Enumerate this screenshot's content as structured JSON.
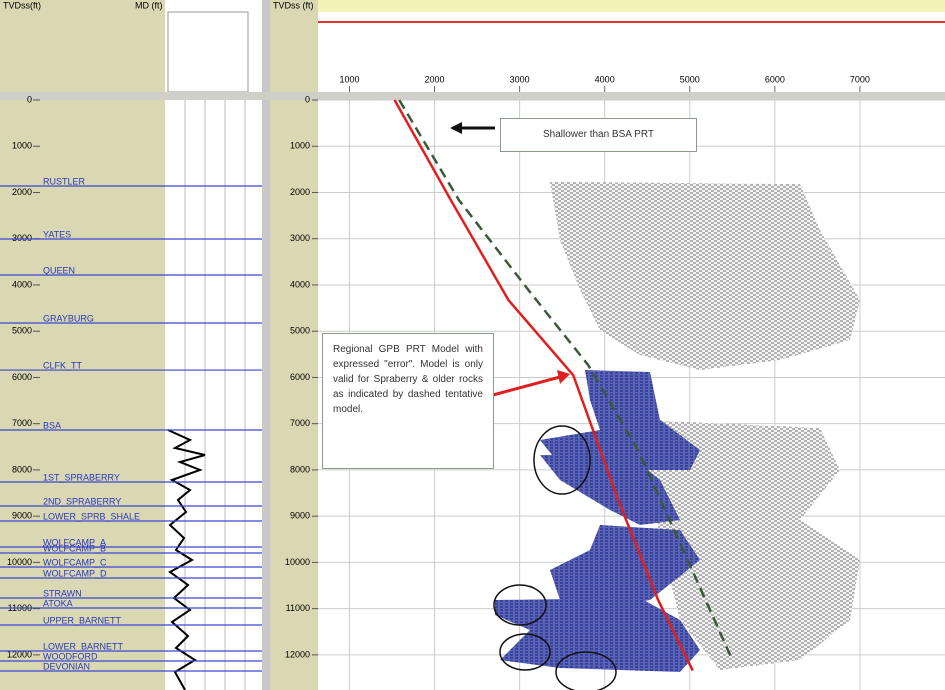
{
  "left_track": {
    "header": "TVDss(ft)",
    "md_header": "MD (ft)",
    "depth_ticks": [
      0,
      1000,
      2000,
      3000,
      4000,
      5000,
      6000,
      7000,
      8000,
      9000,
      10000,
      11000,
      12000
    ],
    "depth_lim": [
      0,
      12500
    ]
  },
  "depth_track": {
    "header": "TVDss (ft)"
  },
  "tops": [
    {
      "name": "RUSTLER",
      "depth": 1860
    },
    {
      "name": "YATES",
      "depth": 3006
    },
    {
      "name": "QUEEN",
      "depth": 3785
    },
    {
      "name": "GRAYBURG",
      "depth": 4823
    },
    {
      "name": "CLFK_TT",
      "depth": 5840
    },
    {
      "name": "BSA",
      "depth": 7137
    },
    {
      "name": "1ST_SPRABERRY",
      "depth": 8261
    },
    {
      "name": "2ND_SPRABERRY",
      "depth": 8780
    },
    {
      "name": "LOWER_SPRB_SHALE",
      "depth": 9105
    },
    {
      "name": "WOLFCAMP_A",
      "depth": 9667
    },
    {
      "name": "WOLFCAMP_B",
      "depth": 9797
    },
    {
      "name": "WOLFCAMP_C",
      "depth": 10100
    },
    {
      "name": "WOLFCAMP_D",
      "depth": 10337
    },
    {
      "name": "STRAWN",
      "depth": 10770
    },
    {
      "name": "ATOKA",
      "depth": 10986
    },
    {
      "name": "UPPER_BARNETT",
      "depth": 11354
    },
    {
      "name": "LOWER_BARNETT",
      "depth": 11916
    },
    {
      "name": "WOODFORD",
      "depth": 12132
    },
    {
      "name": "DEVONIAN",
      "depth": 12349
    }
  ],
  "crossplot": {
    "x_ticks": [
      1000,
      2000,
      3000,
      4000,
      5000,
      6000,
      7000
    ],
    "x_lim": [
      630,
      8000
    ],
    "gpb_model": {
      "color": "#e02020",
      "velocity": [
        1530,
        2190,
        2870,
        3630,
        4160,
        4630,
        5035
      ],
      "depth": [
        0,
        2160,
        4330,
        5950,
        8660,
        10820,
        12340
      ]
    },
    "tentative_model": {
      "color": "#3a5a3a",
      "velocity": [
        1585,
        2287,
        3105,
        3807,
        4392,
        4977,
        5503
      ],
      "depth": [
        0,
        2165,
        4113,
        5736,
        7576,
        9957,
        12121
      ]
    }
  },
  "callouts": {
    "shallow": "Shallower than BSA PRT",
    "model": "Regional GPB PRT Model with expressed \"error\". Model is only valid for Spraberry & older rocks as indicated by dashed tentative model."
  }
}
